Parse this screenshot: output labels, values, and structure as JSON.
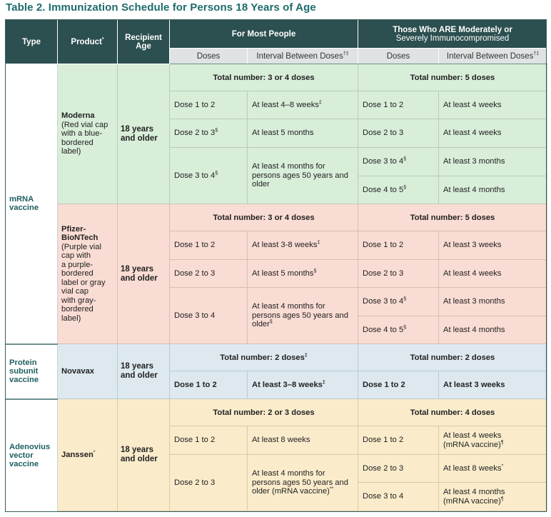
{
  "title": "Table 2. Immunization Schedule for Persons 18 Years of Age",
  "header": {
    "type": "Type",
    "product": "Product",
    "product_sup": "*",
    "age_line1": "Recipient",
    "age_line2": "Age",
    "most_people": "For Most People",
    "immuno_line1a": "Those Who ",
    "immuno_line1b": "ARE",
    "immuno_line1c": " Moderately or",
    "immuno_line2": "Severely Immunocompromised",
    "doses": "Doses",
    "interval": "Interval Between Doses",
    "interval_sup": "†‡"
  },
  "groups": {
    "mrna": {
      "type_line1": "mRNA",
      "type_line2": "vaccine"
    },
    "protein": {
      "type_line1": "Protein",
      "type_line2": "subunit",
      "type_line3": "vaccine"
    },
    "adeno": {
      "type_line1": "Adenovius",
      "type_line2": "vector",
      "type_line3": "vaccine"
    }
  },
  "moderna": {
    "product_line1": "Moderna",
    "product_line2": "(Red vial cap",
    "product_line3": "with a blue-",
    "product_line4": "bordered",
    "product_line5": "label)",
    "age_line1": "18 years",
    "age_line2": "and older",
    "total_most": "Total number: 3 or 4 doses",
    "total_immuno": "Total number: 5 doses",
    "most": [
      {
        "dose": "Dose 1 to 2",
        "dose_sup": "",
        "interval": "At least 4–8 weeks",
        "interval_sup": "‡"
      },
      {
        "dose": "Dose 2 to 3",
        "dose_sup": "§",
        "interval": "At least 5 months",
        "interval_sup": ""
      },
      {
        "dose": "Dose 3 to 4",
        "dose_sup": "§",
        "interval_line1": "At least 4 months for",
        "interval_line2": "persons ages 50 years and",
        "interval_line3": "older",
        "interval_sup": ""
      }
    ],
    "immuno": [
      {
        "dose": "Dose 1 to 2",
        "dose_sup": "",
        "interval": "At least 4 weeks"
      },
      {
        "dose": "Dose 2 to 3",
        "dose_sup": "",
        "interval": "At least 4 weeks"
      },
      {
        "dose": "Dose 3 to 4",
        "dose_sup": "§",
        "interval": "At least 3 months"
      },
      {
        "dose": "Dose 4 to 5",
        "dose_sup": "§",
        "interval": "At least 4 months"
      }
    ]
  },
  "pfizer": {
    "product_line1": "Pfizer-",
    "product_line2": "BioNTech",
    "product_line3": "(Purple vial",
    "product_line4": "cap with",
    "product_line5": "a purple-",
    "product_line6": "bordered",
    "product_line7": "label or gray",
    "product_line8": "vial cap",
    "product_line9": "with gray-",
    "product_line10": "bordered",
    "product_line11": "label)",
    "age_line1": "18 years",
    "age_line2": "and older",
    "total_most": "Total number: 3 or 4 doses",
    "total_immuno": "Total number: 5 doses",
    "most": [
      {
        "dose": "Dose 1 to 2",
        "interval": "At least 3-8 weeks",
        "interval_sup": "‡"
      },
      {
        "dose": "Dose 2 to 3",
        "interval": "At least 5 months",
        "interval_sup": "§"
      },
      {
        "dose": "Dose 3 to 4",
        "interval_line1": "At least 4 months for",
        "interval_line2": "persons ages 50 years and",
        "interval_line3": "older",
        "interval_sup": "§"
      }
    ],
    "immuno": [
      {
        "dose": "Dose 1 to 2",
        "dose_sup": "",
        "interval": "At least 3 weeks"
      },
      {
        "dose": "Dose 2 to 3",
        "dose_sup": "",
        "interval": "At least 4 weeks"
      },
      {
        "dose": "Dose 3 to 4",
        "dose_sup": "§",
        "interval": "At least 3 months"
      },
      {
        "dose": "Dose 4 to 5",
        "dose_sup": "§",
        "interval": "At least 4 months"
      }
    ]
  },
  "novavax": {
    "product": "Novavax",
    "age_line1": "18 years",
    "age_line2": "and older",
    "total_most": "Total number: 2 doses",
    "total_most_sup": "‡",
    "total_immuno": "Total number: 2 doses",
    "most": [
      {
        "dose": "Dose 1 to 2",
        "interval": "At least 3–8 weeks",
        "interval_sup": "‡"
      }
    ],
    "immuno": [
      {
        "dose": "Dose 1 to 2",
        "interval": "At least 3 weeks"
      }
    ]
  },
  "janssen": {
    "product": "Janssen",
    "product_sup": "*",
    "age_line1": "18 years",
    "age_line2": "and older",
    "total_most": "Total number: 2 or 3 doses",
    "total_immuno": "Total number: 4 doses",
    "most": [
      {
        "dose": "Dose 1 to 2",
        "interval": "At least 8 weeks"
      },
      {
        "dose": "Dose 2 to 3",
        "interval_line1": "At least 4 months for",
        "interval_line2": "persons ages 50 years and",
        "interval_line3": "older (mRNA vaccine)",
        "interval_sup": "**"
      }
    ],
    "immuno": [
      {
        "dose": "Dose 1 to 2",
        "interval_line1": "At least 4 weeks",
        "interval_line2": "(mRNA vaccine)",
        "interval_sup": "¶"
      },
      {
        "dose": "Dose 2 to 3",
        "interval": "At least 8 weeks",
        "interval_sup": "*"
      },
      {
        "dose": "Dose 3 to 4",
        "interval_line1": "At least 4 months",
        "interval_line2": "(mRNA vaccine)",
        "interval_sup": "¶"
      }
    ]
  },
  "colors": {
    "header_dark": "#2c4f4f",
    "title": "#1f6b6b",
    "moderna_bg": "#d8eed9",
    "pfizer_bg": "#f9dcd3",
    "novavax_bg": "#dde9ef",
    "janssen_bg": "#faeccb"
  }
}
